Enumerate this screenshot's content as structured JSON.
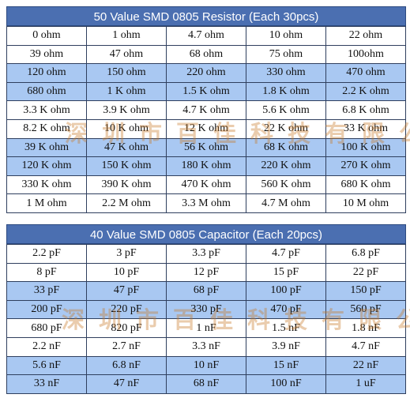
{
  "resistor": {
    "title": "50 Value SMD 0805 Resistor (Each 30pcs)",
    "rows": [
      {
        "style": "white",
        "cells": [
          "0 ohm",
          "1 ohm",
          "4.7 ohm",
          "10 ohm",
          "22 ohm"
        ]
      },
      {
        "style": "white",
        "cells": [
          "39 ohm",
          "47 ohm",
          "68 ohm",
          "75 ohm",
          "100ohm"
        ]
      },
      {
        "style": "blue",
        "cells": [
          "120 ohm",
          "150 ohm",
          "220 ohm",
          "330 ohm",
          "470 ohm"
        ]
      },
      {
        "style": "blue",
        "cells": [
          "680 ohm",
          "1 K ohm",
          "1.5 K ohm",
          "1.8 K ohm",
          "2.2 K ohm"
        ]
      },
      {
        "style": "white",
        "cells": [
          "3.3 K ohm",
          "3.9 K ohm",
          "4.7 K ohm",
          "5.6 K ohm",
          "6.8 K ohm"
        ]
      },
      {
        "style": "white",
        "cells": [
          "8.2 K ohm",
          "10 K ohm",
          "12 K ohm",
          "22 K ohm",
          "33 K ohm"
        ]
      },
      {
        "style": "blue",
        "cells": [
          "39 K ohm",
          "47 K ohm",
          "56 K ohm",
          "68 K ohm",
          "100 K ohm"
        ]
      },
      {
        "style": "blue",
        "cells": [
          "120 K ohm",
          "150 K ohm",
          "180 K ohm",
          "220 K ohm",
          "270 K ohm"
        ]
      },
      {
        "style": "white",
        "cells": [
          "330 K ohm",
          "390 K ohm",
          "470 K ohm",
          "560 K ohm",
          "680 K ohm"
        ]
      },
      {
        "style": "white",
        "cells": [
          "1 M ohm",
          "2.2 M ohm",
          "3.3 M ohm",
          "4.7 M ohm",
          "10 M ohm"
        ]
      }
    ]
  },
  "capacitor": {
    "title": "40 Value SMD 0805 Capacitor (Each 20pcs)",
    "rows": [
      {
        "style": "white",
        "cells": [
          "2.2 pF",
          "3 pF",
          "3.3 pF",
          "4.7 pF",
          "6.8 pF"
        ]
      },
      {
        "style": "white",
        "cells": [
          "8 pF",
          "10 pF",
          "12 pF",
          "15 pF",
          "22 pF"
        ]
      },
      {
        "style": "blue",
        "cells": [
          "33 pF",
          "47 pF",
          "68 pF",
          "100 pF",
          "150 pF"
        ]
      },
      {
        "style": "blue",
        "cells": [
          "200 pF",
          "220 pF",
          "330 pF",
          "470 pF",
          "560 pF"
        ]
      },
      {
        "style": "white",
        "cells": [
          "680 pF",
          "820 pF",
          "1 nF",
          "1.5 nF",
          "1.8 nF"
        ]
      },
      {
        "style": "white",
        "cells": [
          "2.2 nF",
          "2.7 nF",
          "3.3 nF",
          "3.9 nF",
          "4.7 nF"
        ]
      },
      {
        "style": "blue",
        "cells": [
          "5.6 nF",
          "6.8 nF",
          "10 nF",
          "15 nF",
          "22 nF"
        ]
      },
      {
        "style": "blue",
        "cells": [
          "33 nF",
          "47 nF",
          "68 nF",
          "100 nF",
          "1 uF"
        ]
      }
    ]
  },
  "watermark": {
    "text": "深圳市百佳科技有限公司"
  },
  "colors": {
    "header_bg": "#4b6fb1",
    "row_blue": "#a9c8f2",
    "row_white": "#ffffff",
    "watermark": "#c8782a"
  }
}
